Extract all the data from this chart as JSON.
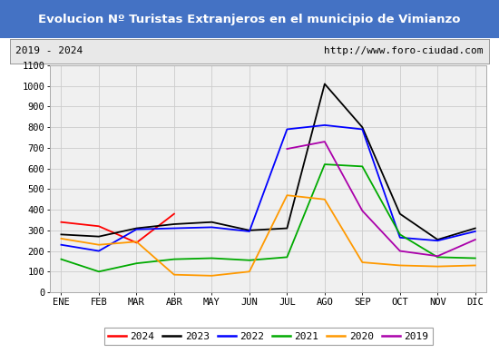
{
  "title": "Evolucion Nº Turistas Extranjeros en el municipio de Vimianzo",
  "subtitle_left": "2019 - 2024",
  "subtitle_right": "http://www.foro-ciudad.com",
  "title_bg_color": "#4472c4",
  "title_fg_color": "#ffffff",
  "subtitle_bg_color": "#e8e8e8",
  "plot_bg_color": "#f0f0f0",
  "months": [
    "ENE",
    "FEB",
    "MAR",
    "ABR",
    "MAY",
    "JUN",
    "JUL",
    "AGO",
    "SEP",
    "OCT",
    "NOV",
    "DIC"
  ],
  "ylim": [
    0,
    1100
  ],
  "yticks": [
    0,
    100,
    200,
    300,
    400,
    500,
    600,
    700,
    800,
    900,
    1000,
    1100
  ],
  "series": {
    "2024": {
      "color": "#ff0000",
      "data": [
        340,
        320,
        240,
        380,
        null,
        null,
        null,
        null,
        null,
        null,
        null,
        null
      ]
    },
    "2023": {
      "color": "#000000",
      "data": [
        280,
        270,
        310,
        330,
        340,
        300,
        310,
        1010,
        800,
        380,
        255,
        310
      ]
    },
    "2022": {
      "color": "#0000ff",
      "data": [
        230,
        200,
        305,
        310,
        315,
        295,
        790,
        810,
        790,
        265,
        250,
        295
      ]
    },
    "2021": {
      "color": "#00aa00",
      "data": [
        160,
        100,
        140,
        160,
        165,
        155,
        170,
        620,
        610,
        280,
        170,
        165
      ]
    },
    "2020": {
      "color": "#ff9900",
      "data": [
        260,
        230,
        245,
        85,
        80,
        100,
        470,
        450,
        145,
        130,
        125,
        130
      ]
    },
    "2019": {
      "color": "#aa00aa",
      "data": [
        null,
        null,
        null,
        null,
        null,
        null,
        695,
        730,
        395,
        200,
        175,
        255
      ]
    }
  },
  "legend_order": [
    "2024",
    "2023",
    "2022",
    "2021",
    "2020",
    "2019"
  ],
  "title_fontsize": 9.5,
  "subtitle_fontsize": 8,
  "tick_fontsize": 7.5,
  "legend_fontsize": 8
}
